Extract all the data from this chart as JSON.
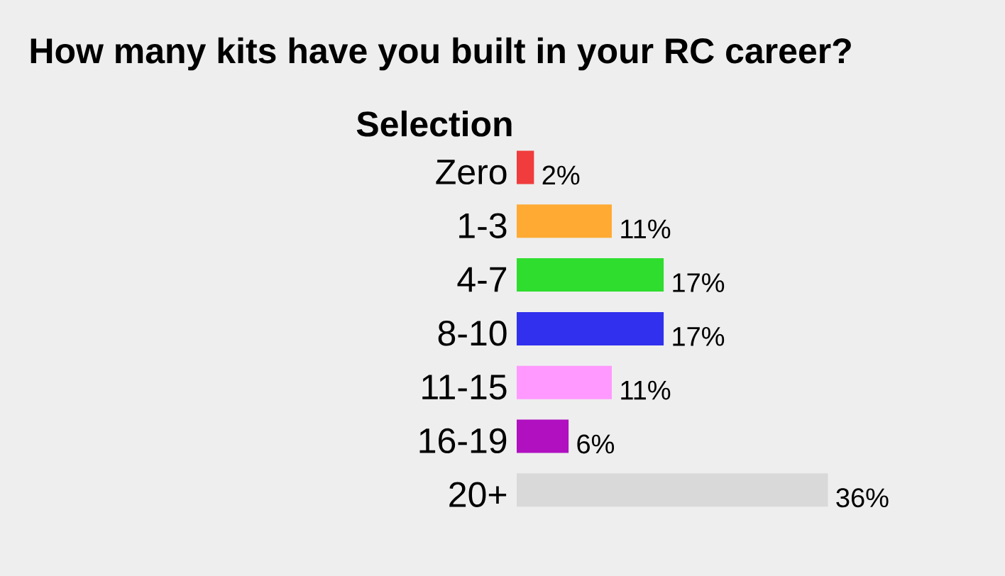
{
  "chart_data": {
    "type": "bar",
    "orientation": "horizontal",
    "title": "How many kits have you built in your RC career?",
    "ylabel": "Selection",
    "categories": [
      "Zero",
      "1-3",
      "4-7",
      "8-10",
      "11-15",
      "16-19",
      "20+"
    ],
    "values": [
      2,
      11,
      17,
      17,
      11,
      6,
      36
    ],
    "colors": [
      "#f03c3c",
      "#ffaa33",
      "#2edd2e",
      "#3030ee",
      "#ff99ff",
      "#b010c0",
      "#d9d9d9"
    ],
    "value_labels": [
      "2%",
      "11%",
      "17%",
      "17%",
      "11%",
      "6%",
      "36%"
    ]
  }
}
